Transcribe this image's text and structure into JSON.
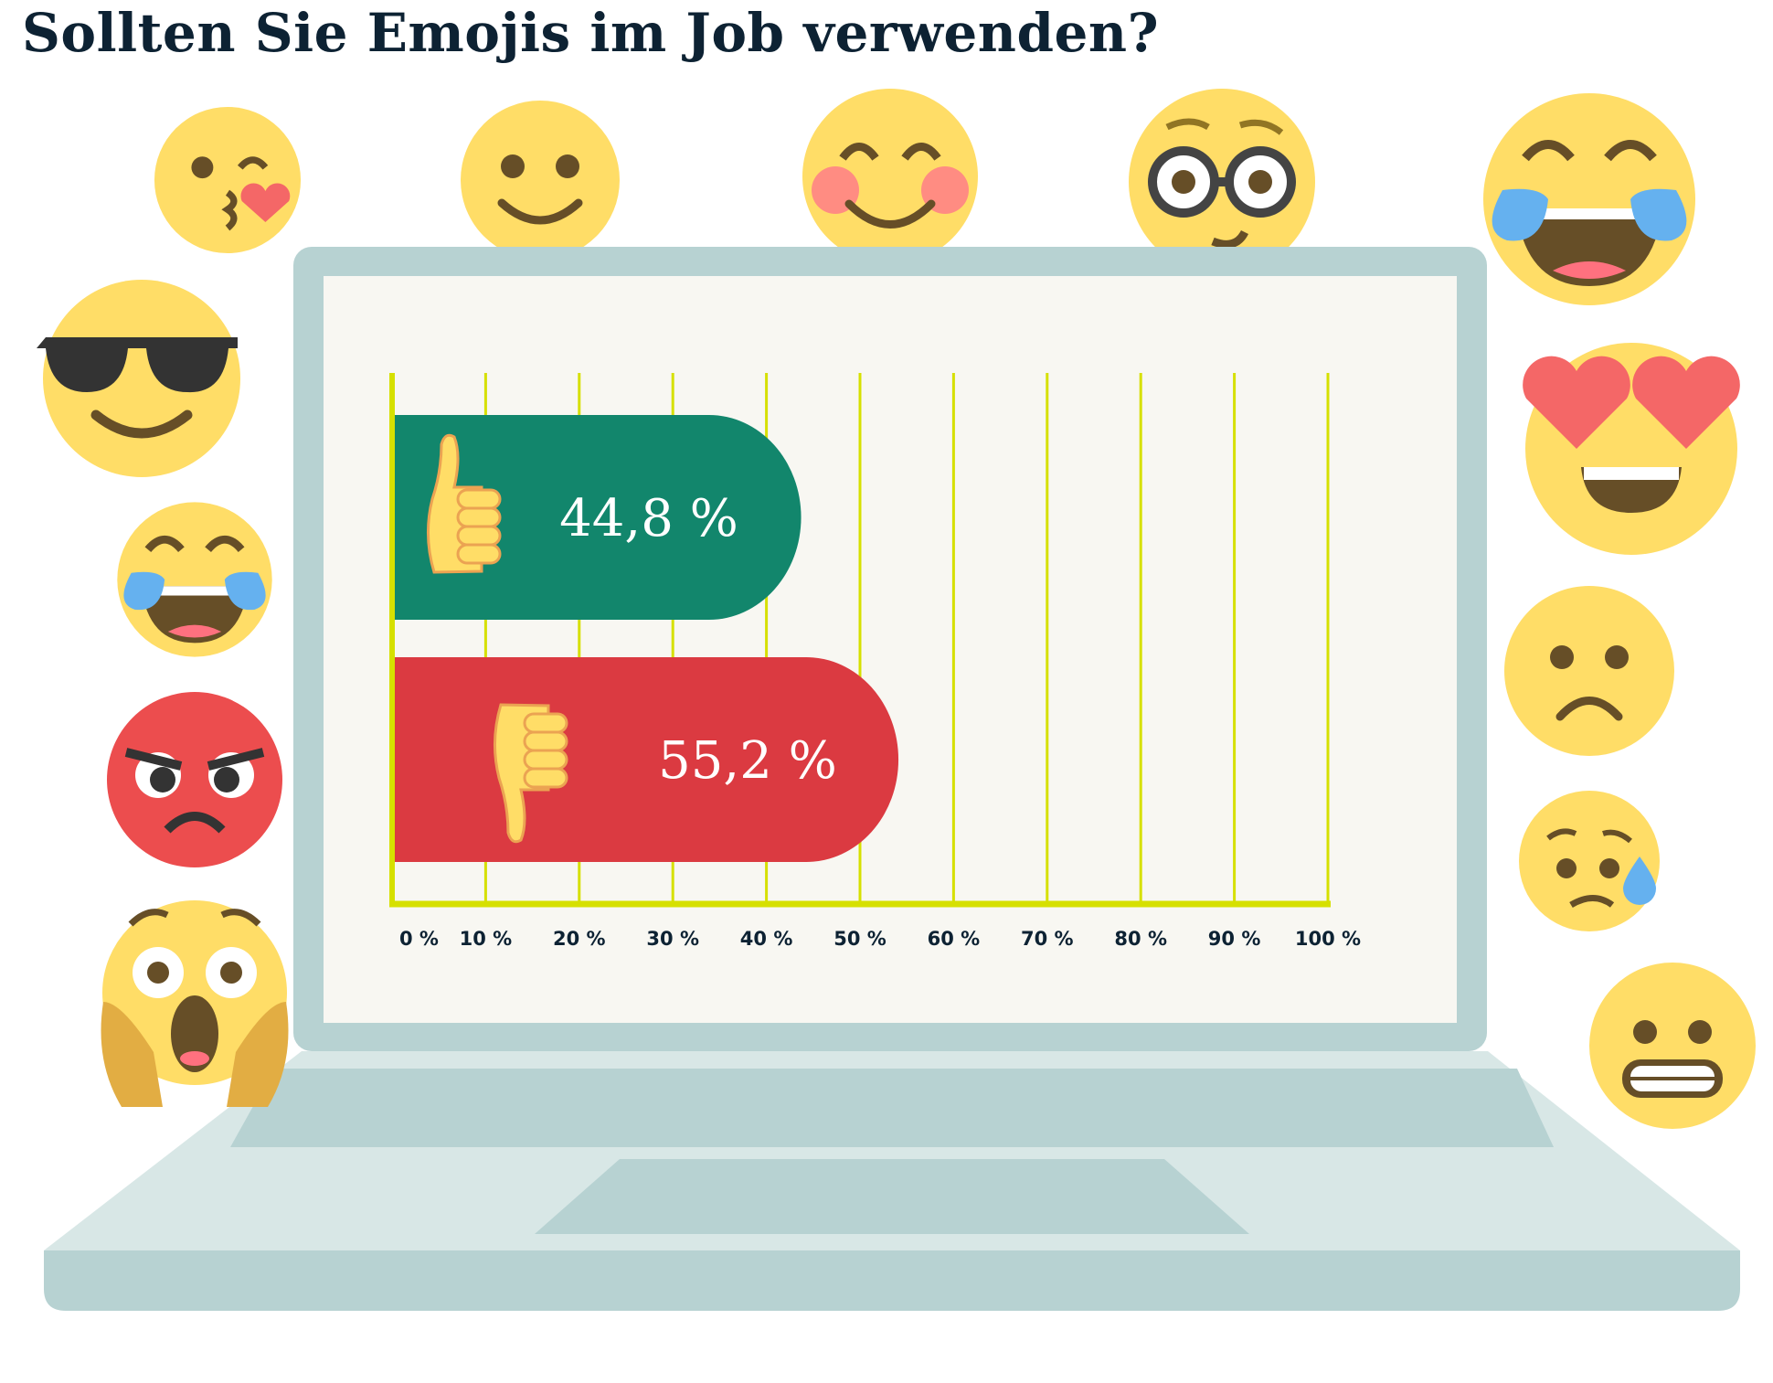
{
  "title": "Sollten Sie Emojis im Job verwenden?",
  "colors": {
    "yes": "#12866c",
    "no": "#db3a41",
    "grid": "#d6e000",
    "screen": "#f8f7f2",
    "laptop": "#b7d2d2",
    "laptop_light": "#d8e7e6",
    "emoji": "#ffdd67"
  },
  "chart_data": {
    "type": "bar",
    "orientation": "horizontal",
    "title": "Sollten Sie Emojis im Job verwenden?",
    "categories": [
      "thumbs-up",
      "thumbs-down"
    ],
    "values": [
      44.8,
      55.2
    ],
    "value_labels": [
      "44,8 %",
      "55,2 %"
    ],
    "bar_colors": [
      "#12866c",
      "#db3a41"
    ],
    "category_icons": [
      "thumbs-up-icon",
      "thumbs-down-icon"
    ],
    "xlim": [
      0,
      100
    ],
    "xticks": [
      "0 %",
      "10 %",
      "20 %",
      "30 %",
      "40 %",
      "50 %",
      "60 %",
      "70 %",
      "80 %",
      "90 %",
      "100 %"
    ],
    "grid": true,
    "xlabel": "",
    "ylabel": ""
  },
  "decorations": [
    "kissing-heart-emoji",
    "slightly-smiling-emoji",
    "blushing-emoji",
    "nerd-glasses-emoji",
    "tears-of-joy-emoji",
    "sunglasses-emoji",
    "heart-eyes-emoji",
    "tears-of-joy-emoji",
    "frowning-emoji",
    "angry-emoji",
    "sweat-emoji",
    "scream-emoji",
    "grimacing-emoji",
    "laptop"
  ]
}
